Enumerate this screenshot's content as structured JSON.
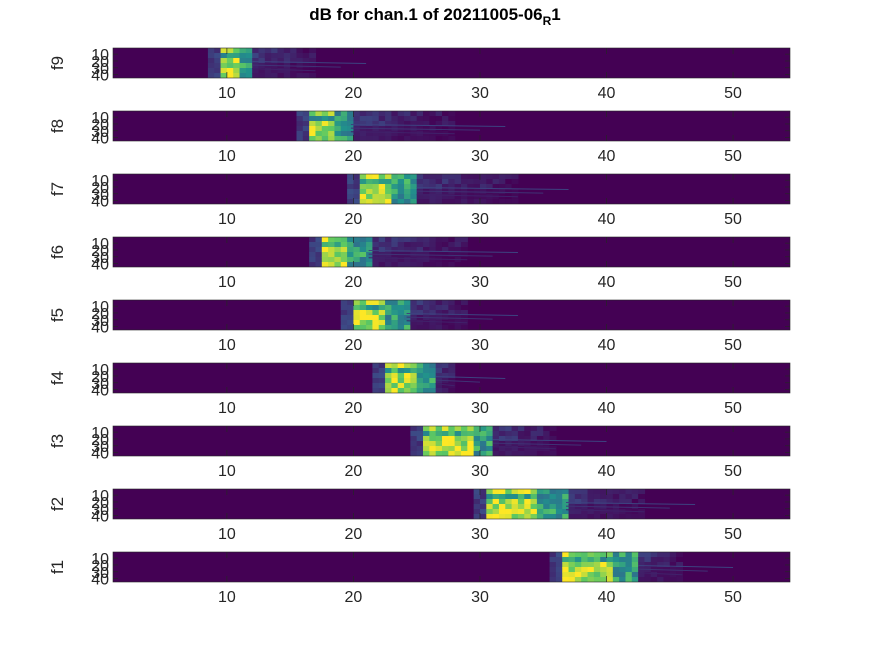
{
  "chart_data": {
    "type": "heatmap",
    "title": "dB for chan.1 of 20211005-06",
    "title_subscript": "R",
    "title_suffix": "1",
    "colormap": "viridis",
    "xlim": [
      1,
      54.5
    ],
    "ylim": [
      1,
      45
    ],
    "x_ticks": [
      10,
      20,
      30,
      40,
      50
    ],
    "y_ticks": [
      10,
      20,
      30,
      40
    ],
    "panels": [
      {
        "label": "f9",
        "hot_start": 9.5,
        "bright_end": 10.8,
        "mid_end": 12.0,
        "tail_end": 17
      },
      {
        "label": "f8",
        "hot_start": 16.5,
        "bright_end": 18.2,
        "mid_end": 19.8,
        "tail_end": 28
      },
      {
        "label": "f7",
        "hot_start": 20.5,
        "bright_end": 22.8,
        "mid_end": 25.0,
        "tail_end": 33
      },
      {
        "label": "f6",
        "hot_start": 17.5,
        "bright_end": 19.5,
        "mid_end": 21.2,
        "tail_end": 29
      },
      {
        "label": "f5",
        "hot_start": 20.0,
        "bright_end": 22.4,
        "mid_end": 24.2,
        "tail_end": 29
      },
      {
        "label": "f4",
        "hot_start": 22.5,
        "bright_end": 24.8,
        "mid_end": 26.5,
        "tail_end": 28
      },
      {
        "label": "f3",
        "hot_start": 25.5,
        "bright_end": 29.2,
        "mid_end": 31.0,
        "tail_end": 36
      },
      {
        "label": "f2",
        "hot_start": 30.5,
        "bright_end": 34.5,
        "mid_end": 36.8,
        "tail_end": 43
      },
      {
        "label": "f1",
        "hot_start": 36.5,
        "bright_end": 40.5,
        "mid_end": 42.5,
        "tail_end": 46
      }
    ]
  }
}
